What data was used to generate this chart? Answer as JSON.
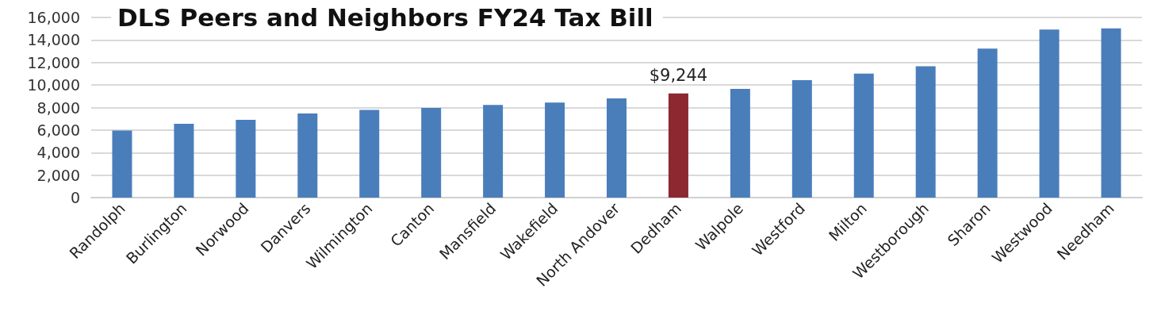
{
  "chart_data": {
    "type": "bar",
    "title": "DLS Peers and Neighbors FY24 Tax Bill",
    "categories": [
      "Randolph",
      "Burlington",
      "Norwood",
      "Danvers",
      "Wilmington",
      "Canton",
      "Mansfield",
      "Wakefield",
      "North Andover",
      "Dedham",
      "Walpole",
      "Westford",
      "Milton",
      "Westborough",
      "Sharon",
      "Westwood",
      "Needham"
    ],
    "values": [
      5950,
      6550,
      6900,
      7480,
      7790,
      7960,
      8230,
      8440,
      8810,
      9244,
      9660,
      10440,
      11020,
      11670,
      13230,
      14930,
      15030
    ],
    "colors": [
      "#4a7ebb",
      "#4a7ebb",
      "#4a7ebb",
      "#4a7ebb",
      "#4a7ebb",
      "#4a7ebb",
      "#4a7ebb",
      "#4a7ebb",
      "#4a7ebb",
      "#8b2830",
      "#4a7ebb",
      "#4a7ebb",
      "#4a7ebb",
      "#4a7ebb",
      "#4a7ebb",
      "#4a7ebb",
      "#4a7ebb"
    ],
    "value_labels": [
      null,
      null,
      null,
      null,
      null,
      null,
      null,
      null,
      null,
      "$9,244",
      null,
      null,
      null,
      null,
      null,
      null,
      null
    ],
    "ylim": [
      0,
      16000
    ],
    "yticks": [
      0,
      {
        "value": 2000,
        "label": "2,000"
      },
      {
        "value": 4000,
        "label": "4,000"
      },
      {
        "value": 6000,
        "label": "6,000"
      },
      {
        "value": 8000,
        "label": "8,000"
      },
      {
        "value": 10000,
        "label": "10,000"
      },
      {
        "value": 12000,
        "label": "12,000"
      },
      {
        "value": 14000,
        "label": "14,000"
      },
      {
        "value": 16000,
        "label": "16,000"
      }
    ],
    "grid": "y"
  }
}
